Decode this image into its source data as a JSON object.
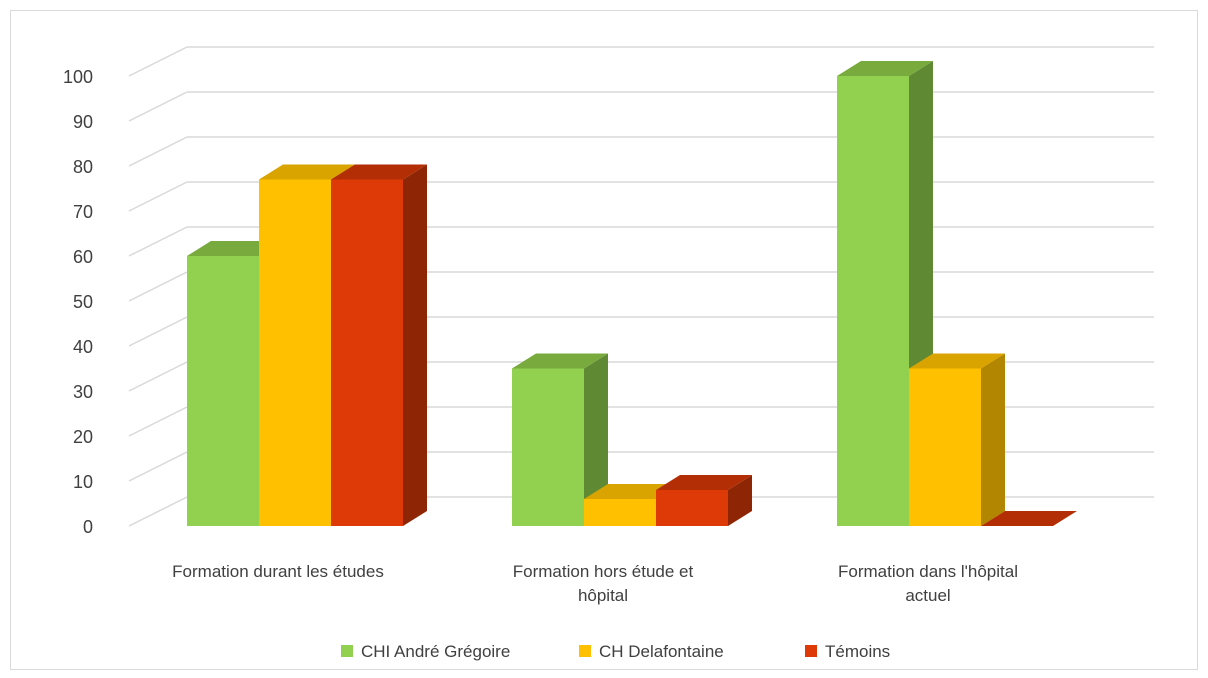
{
  "chart_data": {
    "type": "bar",
    "style": "3d-clustered-column",
    "title": "",
    "xlabel": "",
    "ylabel": "",
    "ylim": [
      0,
      100
    ],
    "yticks": [
      0,
      10,
      20,
      30,
      40,
      50,
      60,
      70,
      80,
      90,
      100
    ],
    "grid": true,
    "legend_position": "bottom",
    "categories": [
      [
        "Formation durant les études"
      ],
      [
        "Formation hors étude et",
        "hôpital"
      ],
      [
        "Formation dans l'hôpital",
        "actuel"
      ]
    ],
    "series": [
      {
        "name": "CHI André Grégoire",
        "values": [
          60,
          35,
          100
        ],
        "color": "#92d050",
        "side_color": "#5f8a33",
        "top_color": "#78aa3e"
      },
      {
        "name": "CH Delafontaine",
        "values": [
          77,
          6,
          35
        ],
        "color": "#ffc000",
        "side_color": "#b38600",
        "top_color": "#d9a300"
      },
      {
        "name": "Témoins",
        "values": [
          77,
          8,
          0
        ],
        "color": "#dd3a07",
        "side_color": "#8e2605",
        "top_color": "#b32e05"
      }
    ]
  }
}
